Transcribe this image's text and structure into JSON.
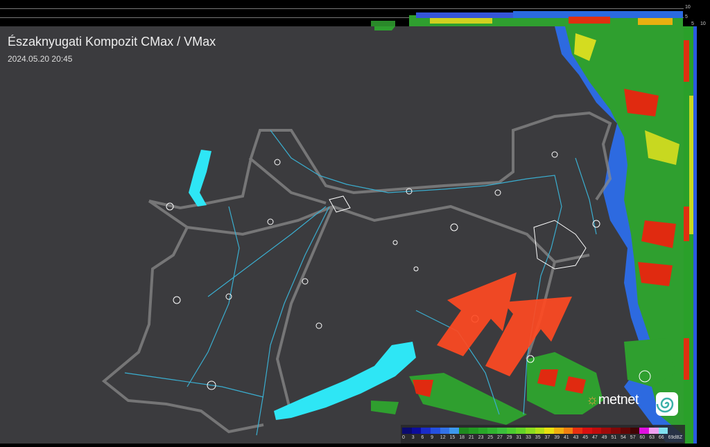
{
  "header": {
    "title": "Északnyugati Kompozit CMax / VMax",
    "timestamp": "2024.05.20 20:45"
  },
  "profile_axes": {
    "vertical_ticks": [
      "10",
      "5"
    ],
    "horizontal_ticks": [
      "5",
      "10"
    ]
  },
  "legend": {
    "unit": "dBZ",
    "labels": [
      "0",
      "3",
      "6",
      "9",
      "12",
      "15",
      "18",
      "21",
      "23",
      "25",
      "27",
      "29",
      "31",
      "33",
      "35",
      "37",
      "39",
      "41",
      "43",
      "45",
      "47",
      "49",
      "51",
      "54",
      "57",
      "60",
      "63",
      "66",
      "69"
    ],
    "colors": [
      "#0a0a6e",
      "#0c0c9a",
      "#1a2cc8",
      "#2450e0",
      "#3272e8",
      "#3c98ee",
      "#1e8a1e",
      "#229a22",
      "#28a828",
      "#30b430",
      "#3cc03c",
      "#4ccc30",
      "#64d428",
      "#8cdc20",
      "#b4e018",
      "#e8e010",
      "#f0b010",
      "#f08010",
      "#e83010",
      "#d81010",
      "#c00c0c",
      "#a00a0a",
      "#800808",
      "#600606",
      "#400404",
      "#e010e0",
      "#f0a0f0",
      "#80e0f0"
    ]
  },
  "map_layers": {
    "lake_color": "#2ee6f5",
    "arrow_color": "#ff4a22",
    "border_color": "#8a8a8a",
    "river_color": "#3aaed0"
  },
  "branding": {
    "logo_text": "metnet",
    "logo_icon": "swirl-icon"
  }
}
